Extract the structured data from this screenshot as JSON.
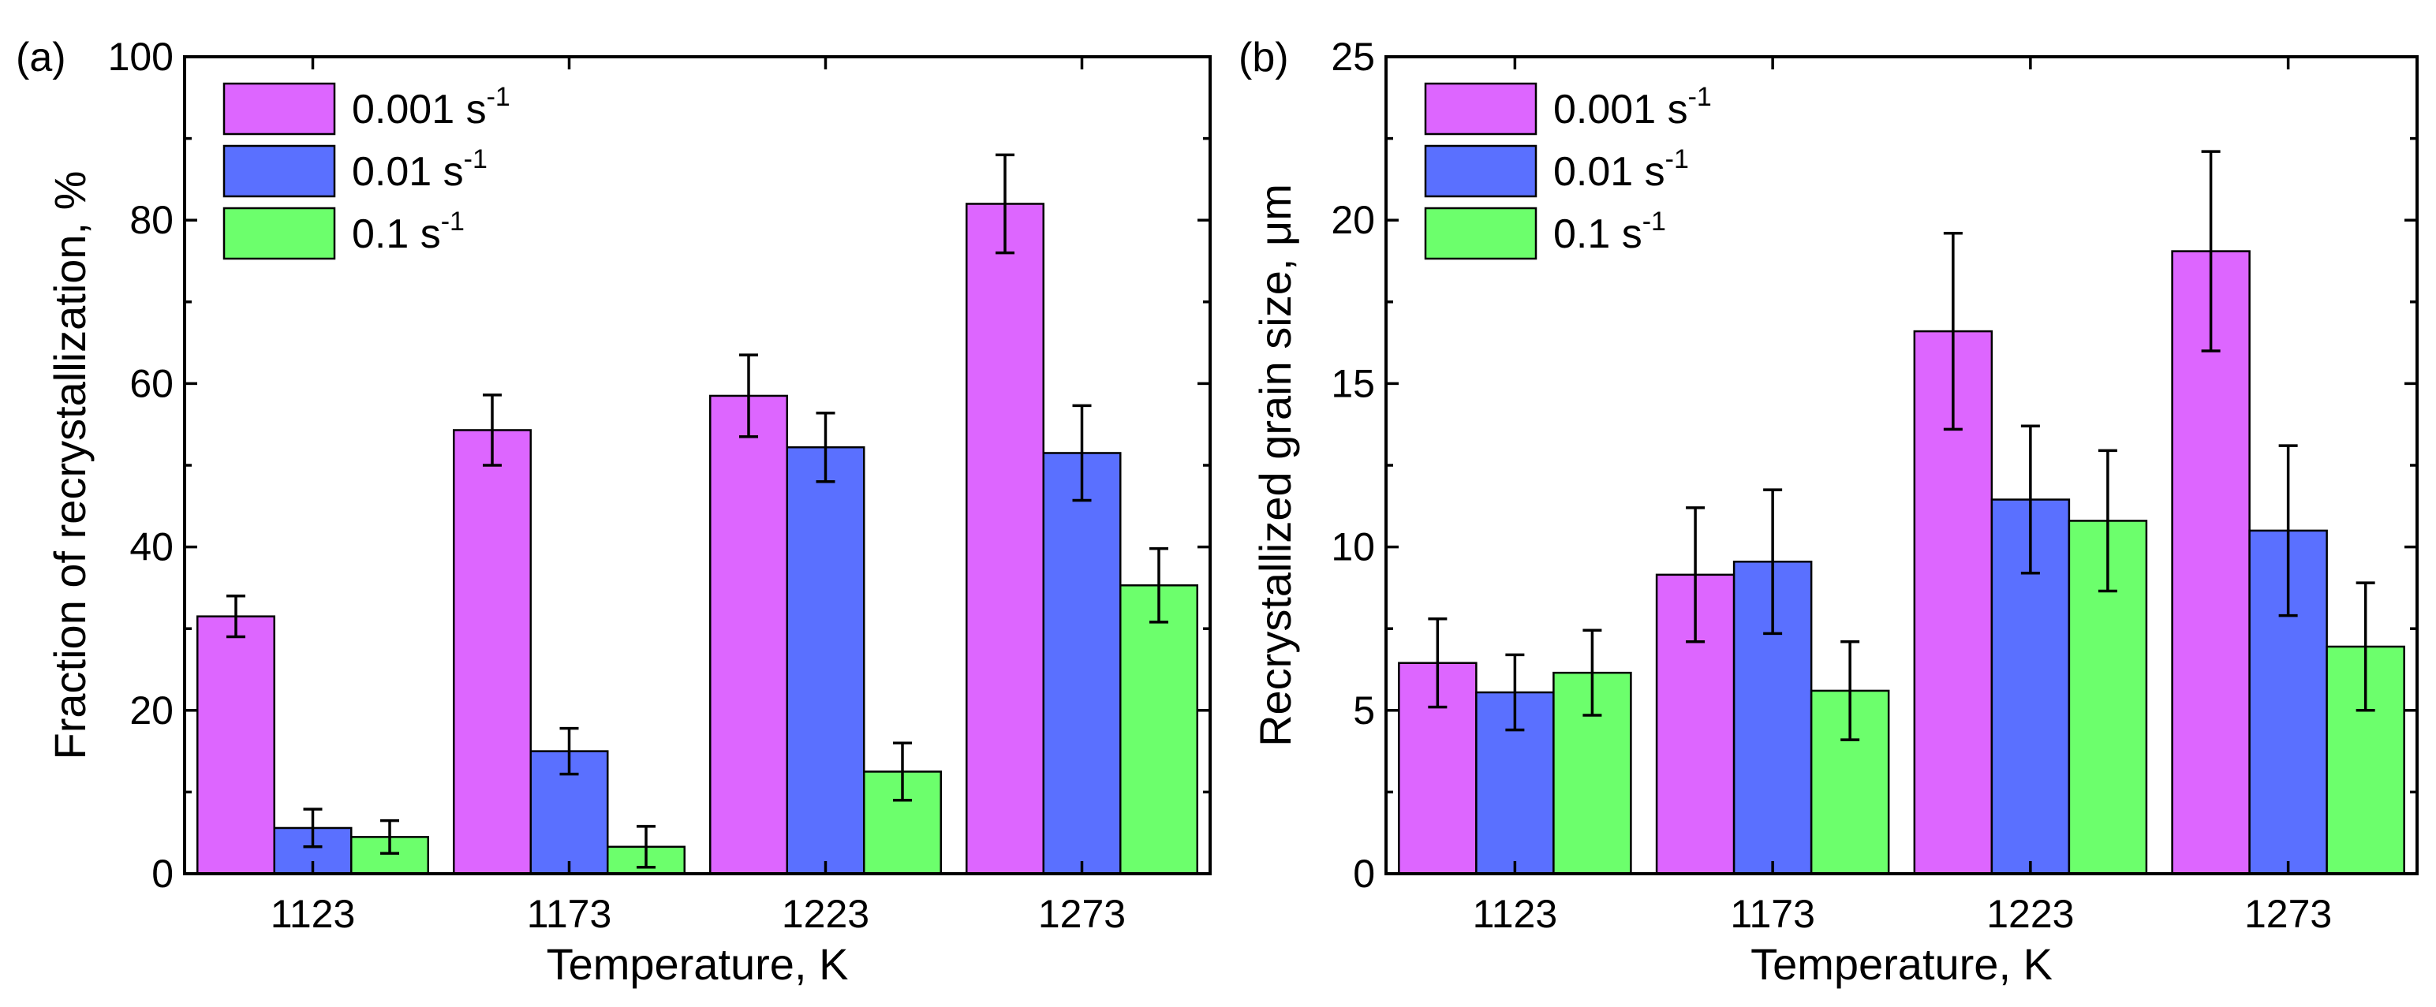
{
  "chart_data": [
    {
      "type": "bar",
      "panel_label": "(a)",
      "categories": [
        "1123",
        "1173",
        "1223",
        "1273"
      ],
      "xlabel": "Temperature, K",
      "ylabel": "Fraction of recrystallization,  %",
      "ylim": [
        0,
        100
      ],
      "yticks": [
        0,
        20,
        40,
        60,
        80,
        100
      ],
      "legend_position": "top-left",
      "series": [
        {
          "name": "0.001 s",
          "exponent": "-1",
          "color": "#dd66ff",
          "values": [
            31.5,
            54.3,
            58.5,
            82.0
          ],
          "errors": [
            2.5,
            4.3,
            5.0,
            6.0
          ]
        },
        {
          "name": "0.01 s",
          "exponent": "-1",
          "color": "#5a70ff",
          "values": [
            5.6,
            15.0,
            52.2,
            51.5
          ],
          "errors": [
            2.3,
            2.8,
            4.2,
            5.8
          ]
        },
        {
          "name": "0.1 s",
          "exponent": "-1",
          "color": "#6cff6c",
          "values": [
            4.5,
            3.3,
            12.5,
            35.3
          ],
          "errors": [
            2.0,
            2.5,
            3.5,
            4.5
          ]
        }
      ]
    },
    {
      "type": "bar",
      "panel_label": "(b)",
      "categories": [
        "1123",
        "1173",
        "1223",
        "1273"
      ],
      "xlabel": "Temperature, K",
      "ylabel": "Recrystallized grain size, μm",
      "ylim": [
        0,
        25
      ],
      "yticks": [
        0,
        5,
        10,
        15,
        20,
        25
      ],
      "legend_position": "top-left",
      "series": [
        {
          "name": "0.001 s",
          "exponent": "-1",
          "color": "#dd66ff",
          "values": [
            6.45,
            9.15,
            16.6,
            19.05
          ],
          "errors": [
            1.35,
            2.05,
            3.0,
            3.05
          ]
        },
        {
          "name": "0.01 s",
          "exponent": "-1",
          "color": "#5a70ff",
          "values": [
            5.55,
            9.55,
            11.45,
            10.5
          ],
          "errors": [
            1.15,
            2.2,
            2.25,
            2.6
          ]
        },
        {
          "name": "0.1 s",
          "exponent": "-1",
          "color": "#6cff6c",
          "values": [
            6.15,
            5.6,
            10.8,
            6.95
          ],
          "errors": [
            1.3,
            1.5,
            2.15,
            1.95
          ]
        }
      ]
    }
  ]
}
